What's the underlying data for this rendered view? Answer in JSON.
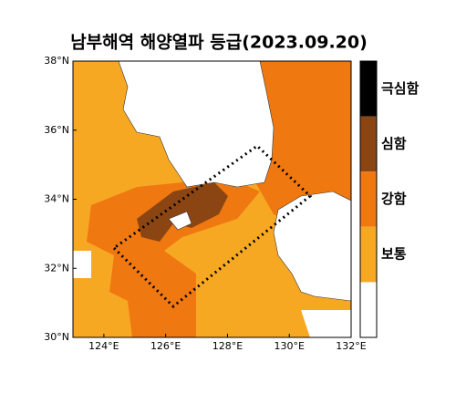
{
  "title": "남부해역 해양열파 등급(2023.09.20)",
  "map": {
    "xlim": [
      123,
      132
    ],
    "ylim": [
      30,
      38
    ],
    "lon_ticks": [
      {
        "value": 124,
        "label": "124°E"
      },
      {
        "value": 126,
        "label": "126°E"
      },
      {
        "value": 128,
        "label": "128°E"
      },
      {
        "value": 130,
        "label": "130°E"
      },
      {
        "value": 132,
        "label": "132°E"
      }
    ],
    "lat_ticks": [
      {
        "value": 30,
        "label": "30°N"
      },
      {
        "value": 32,
        "label": "32°N"
      },
      {
        "value": 34,
        "label": "34°N"
      },
      {
        "value": 36,
        "label": "36°N"
      },
      {
        "value": 38,
        "label": "38°N"
      }
    ]
  },
  "legend": [
    {
      "name": "극심함",
      "color": "#000000"
    },
    {
      "name": "심함",
      "color": "#8b4513"
    },
    {
      "name": "강함",
      "color": "#f07810"
    },
    {
      "name": "보통",
      "color": "#f7a823"
    }
  ]
}
